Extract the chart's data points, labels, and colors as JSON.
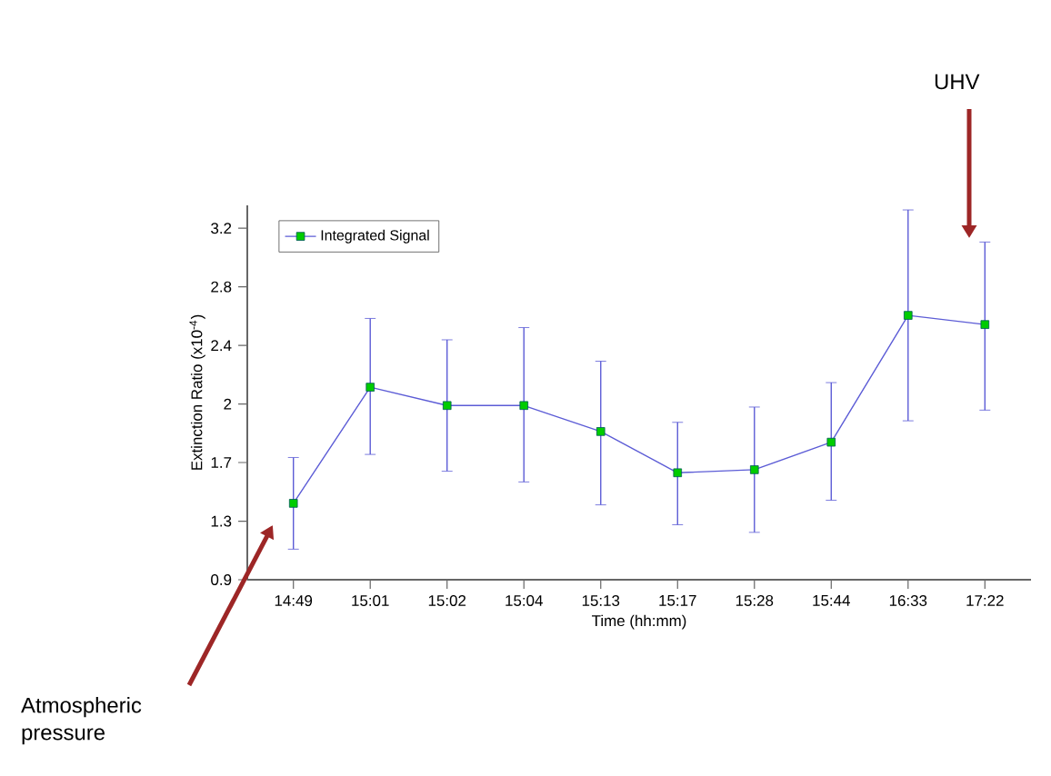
{
  "chart_data": {
    "type": "line",
    "xlabel": "Time (hh:mm)",
    "ylabel": "Extinction Ratio (x10$^{-4}$)",
    "categories": [
      "14:49",
      "15:01",
      "15:02",
      "15:04",
      "15:13",
      "15:17",
      "15:28",
      "15:44",
      "16:33",
      "17:22"
    ],
    "series": [
      {
        "name": "Integrated Signal",
        "color": "#5c5cd6",
        "values": [
          1.4,
          2.16,
          2.04,
          2.04,
          1.87,
          1.6,
          1.62,
          1.8,
          2.63,
          2.57
        ],
        "errors": [
          [
            1.1,
            1.7
          ],
          [
            1.72,
            2.61
          ],
          [
            1.61,
            2.47
          ],
          [
            1.54,
            2.55
          ],
          [
            1.39,
            2.33
          ],
          [
            1.26,
            1.93
          ],
          [
            1.21,
            2.03
          ],
          [
            1.42,
            2.19
          ],
          [
            1.94,
            3.32
          ],
          [
            2.01,
            3.11
          ]
        ]
      }
    ],
    "ylim": [
      0.9,
      3.35
    ],
    "yticks": [
      0.9,
      {
        "value": 1.283,
        "label": "1.3"
      },
      {
        "value": 1.667,
        "label": "1.7"
      },
      {
        "value": 2.05,
        "label": "2"
      },
      {
        "value": 2.433,
        "label": "2.4"
      },
      {
        "value": 2.817,
        "label": "2.8"
      },
      3.2
    ],
    "marker": "square",
    "line_style": "solid",
    "legend": "top left",
    "grid": false,
    "annotations": [
      "UHV",
      "Atmospheric pressure"
    ]
  }
}
